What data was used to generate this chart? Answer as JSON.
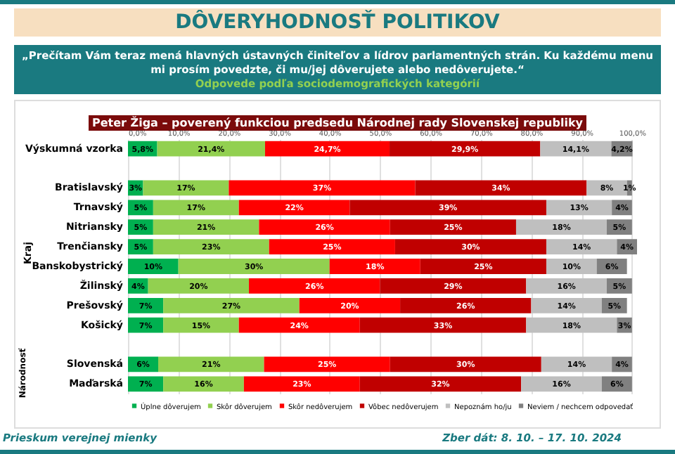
{
  "chart_data": {
    "type": "bar",
    "orientation": "horizontal",
    "stacked": true,
    "title": "DÔVERYHODNOSŤ POLITIKOV",
    "subtitle": "„Prečítam Vám teraz mená hlavných ústavných činiteľov a lídrov parlamentných strán. Ku každému menu mi prosím povedzte, či mu/jej dôverujete alebo nedôverujete.“",
    "annotations": [
      "Odpovede podľa sociodemografických kategórií",
      "Peter Žiga – poverený funkciou predsedu Národnej rady Slovenskej republiky",
      "Kraj",
      "Národnosť",
      "Prieskum verejnej mienky",
      "Zber dát: 8. 10. – 17. 10. 2024"
    ],
    "categories": [
      "Výskumná vzorka",
      null,
      "Bratislavský",
      "Trnavský",
      "Nitriansky",
      "Trenčiansky",
      "Banskobystrický",
      "Žilinský",
      "Prešovský",
      "Košický",
      null,
      "Slovenská",
      "Maďarská"
    ],
    "series": [
      {
        "name": "Úplne dôverujem",
        "color": "#00b050",
        "values": [
          5.8,
          null,
          3,
          5,
          5,
          5,
          10,
          4,
          7,
          7,
          null,
          6,
          7
        ],
        "value_labels": [
          "5,8%",
          null,
          "3%",
          "5%",
          "5%",
          "5%",
          "10%",
          "4%",
          "7%",
          "7%",
          null,
          "6%",
          "7%"
        ]
      },
      {
        "name": "Skôr dôverujem",
        "color": "#92d050",
        "values": [
          21.4,
          null,
          17,
          17,
          21,
          23,
          30,
          20,
          27,
          15,
          null,
          21,
          16
        ],
        "value_labels": [
          "21,4%",
          null,
          "17%",
          "17%",
          "21%",
          "23%",
          "30%",
          "20%",
          "27%",
          "15%",
          null,
          "21%",
          "16%"
        ]
      },
      {
        "name": "Skôr nedôverujem",
        "color": "#ff0000",
        "values": [
          24.7,
          null,
          37,
          22,
          26,
          25,
          18,
          26,
          20,
          24,
          null,
          25,
          23
        ],
        "value_labels": [
          "24,7%",
          null,
          "37%",
          "22%",
          "26%",
          "25%",
          "18%",
          "26%",
          "20%",
          "24%",
          null,
          "25%",
          "23%"
        ]
      },
      {
        "name": "Vôbec nedôverujem",
        "color": "#c00000",
        "values": [
          29.9,
          null,
          34,
          39,
          25,
          30,
          25,
          29,
          26,
          33,
          null,
          30,
          32
        ],
        "value_labels": [
          "29,9%",
          null,
          "34%",
          "39%",
          "25%",
          "30%",
          "25%",
          "29%",
          "26%",
          "33%",
          null,
          "30%",
          "32%"
        ]
      },
      {
        "name": "Nepoznám ho/ju",
        "color": "#bfbfbf",
        "values": [
          14.1,
          null,
          8,
          13,
          18,
          14,
          10,
          16,
          14,
          18,
          null,
          14,
          16
        ],
        "value_labels": [
          "14,1%",
          null,
          "8%",
          "13%",
          "18%",
          "14%",
          "10%",
          "16%",
          "14%",
          "18%",
          null,
          "14%",
          "16%"
        ]
      },
      {
        "name": "Neviem / nechcem odpovedať",
        "color": "#808080",
        "values": [
          4.2,
          null,
          1,
          4,
          5,
          4,
          6,
          5,
          5,
          3,
          null,
          4,
          6
        ],
        "value_labels": [
          "4,2%",
          null,
          "1%",
          "4%",
          "5%",
          "4%",
          "6%",
          "5%",
          "5%",
          "3%",
          null,
          "4%",
          "6%"
        ]
      }
    ],
    "xlim": [
      0,
      101
    ],
    "xticks": [
      {
        "value": 0,
        "label": "0,0%"
      },
      {
        "value": 10,
        "label": "10,0%"
      },
      {
        "value": 20,
        "label": "20,0%"
      },
      {
        "value": 30,
        "label": "30,0%"
      },
      {
        "value": 40,
        "label": "40,0%"
      },
      {
        "value": 50,
        "label": "50,0%"
      },
      {
        "value": 60,
        "label": "60,0%"
      },
      {
        "value": 70,
        "label": "70,0%"
      },
      {
        "value": 80,
        "label": "80,0%"
      },
      {
        "value": 90,
        "label": "90,0%"
      },
      {
        "value": 100,
        "label": "100,0%"
      }
    ],
    "grid": "x",
    "legend": "bottom"
  }
}
